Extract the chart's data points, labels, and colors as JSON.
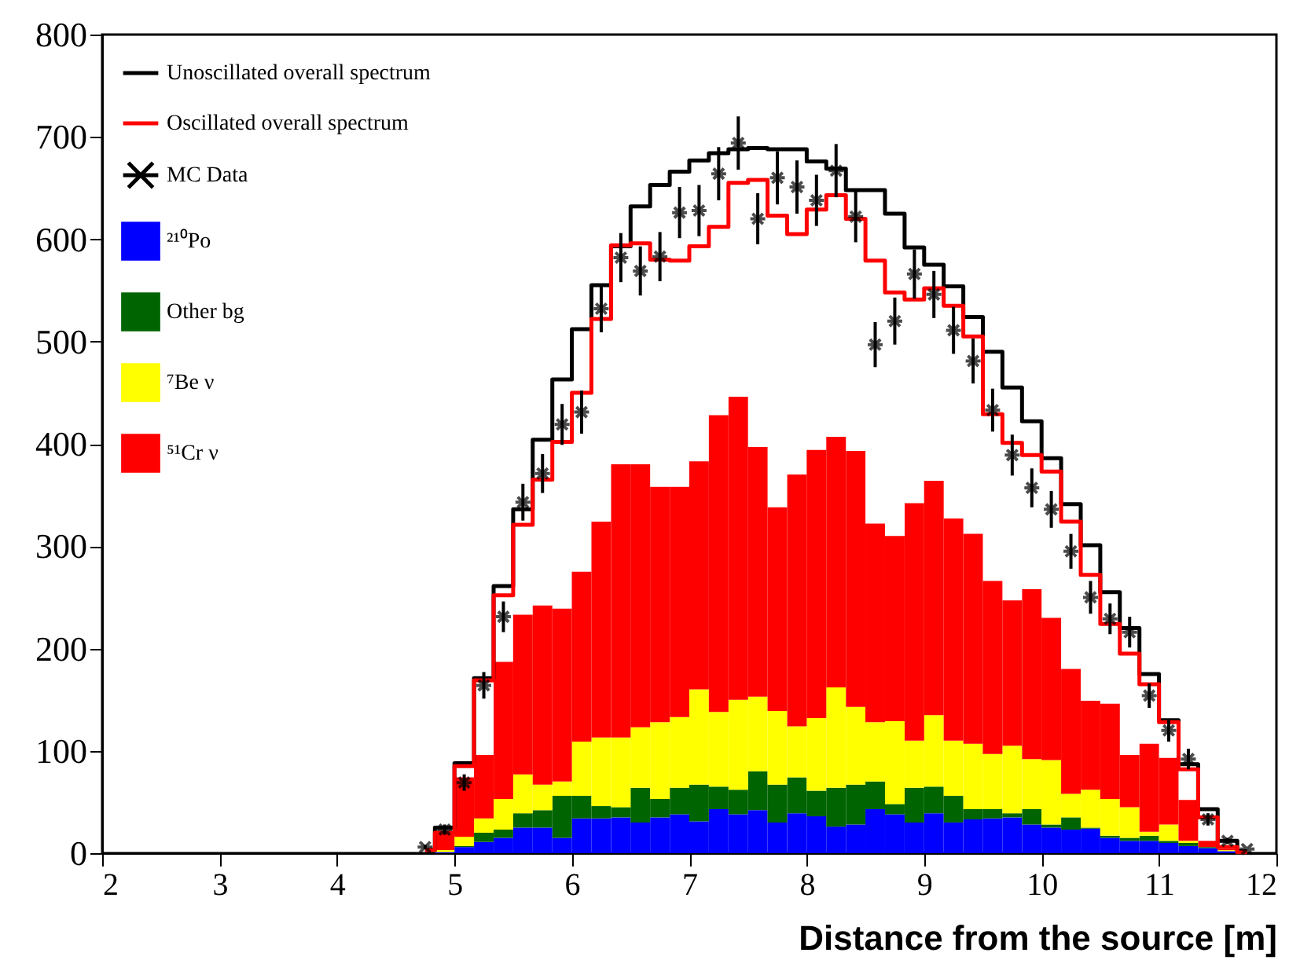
{
  "chart_data": {
    "type": "bar",
    "xlabel": "Distance from the source [m]",
    "xlim": [
      2,
      12
    ],
    "xticks": [
      2,
      3,
      4,
      5,
      6,
      7,
      8,
      9,
      10,
      11,
      12
    ],
    "ylim": [
      0,
      800
    ],
    "yticks": [
      0,
      100,
      200,
      300,
      400,
      500,
      600,
      700,
      800
    ],
    "grid": false,
    "legend": "top left",
    "stacked": true,
    "x": [
      4.75,
      4.917,
      5.083,
      5.25,
      5.417,
      5.583,
      5.75,
      5.917,
      6.083,
      6.25,
      6.417,
      6.583,
      6.75,
      6.917,
      7.083,
      7.25,
      7.417,
      7.583,
      7.75,
      7.917,
      8.083,
      8.25,
      8.417,
      8.583,
      8.75,
      8.917,
      9.083,
      9.25,
      9.417,
      9.583,
      9.75,
      9.917,
      10.083,
      10.25,
      10.417,
      10.583,
      10.75,
      10.917,
      11.083,
      11.25,
      11.417,
      11.583,
      11.75
    ],
    "series": [
      {
        "name": "Unoscillated overall spectrum",
        "type": "step",
        "color": "#000000",
        "values": [
          3,
          25,
          88,
          171,
          261,
          336,
          404,
          463,
          512,
          555,
          593,
          632,
          653,
          666,
          677,
          684,
          688,
          689,
          688,
          688,
          676,
          669,
          648,
          648,
          625,
          592,
          575,
          554,
          524,
          490,
          455,
          422,
          386,
          341,
          301,
          255,
          220,
          175,
          130,
          87,
          43,
          12,
          2
        ]
      },
      {
        "name": "Oscillated overall spectrum",
        "type": "step",
        "color": "#ff0000",
        "values": [
          3,
          20,
          85,
          169,
          252,
          321,
          365,
          402,
          450,
          522,
          594,
          596,
          580,
          579,
          593,
          612,
          655,
          658,
          623,
          605,
          629,
          643,
          620,
          579,
          548,
          541,
          552,
          535,
          505,
          429,
          401,
          389,
          373,
          324,
          272,
          224,
          195,
          165,
          128,
          82,
          35,
          6,
          1
        ]
      },
      {
        "name": "MC Data",
        "type": "scatter",
        "color": "#000000",
        "marker": "cross",
        "values": [
          6,
          23,
          69,
          164,
          231,
          343,
          371,
          419,
          431,
          532,
          582,
          569,
          583,
          626,
          628,
          664,
          694,
          620,
          660,
          651,
          638,
          667,
          622,
          497,
          520,
          566,
          546,
          511,
          481,
          433,
          389,
          357,
          336,
          295,
          250,
          229,
          216,
          154,
          120,
          92,
          33,
          12,
          4
        ],
        "errors": [
          2,
          5,
          8,
          13,
          15,
          18,
          19,
          20,
          21,
          23,
          24,
          24,
          24,
          25,
          25,
          26,
          26,
          25,
          26,
          26,
          25,
          26,
          25,
          22,
          23,
          24,
          23,
          23,
          22,
          21,
          20,
          19,
          18,
          17,
          16,
          15,
          15,
          12,
          11,
          10,
          6,
          3,
          null
        ]
      },
      {
        "name": "²¹⁰Po",
        "color": "#0000ff",
        "values": [
          0,
          1,
          6,
          11,
          15,
          25,
          25,
          15,
          34,
          34,
          35,
          30,
          35,
          38,
          31,
          43,
          38,
          42,
          30,
          39,
          36,
          26,
          28,
          43,
          38,
          30,
          39,
          30,
          33,
          34,
          35,
          28,
          25,
          23,
          24,
          15,
          12,
          12,
          10,
          7,
          5,
          2,
          0
        ]
      },
      {
        "name": "Other bg",
        "color": "#006400",
        "values": [
          0,
          0,
          1,
          9,
          8,
          14,
          17,
          41,
          22,
          12,
          10,
          34,
          18,
          26,
          36,
          22,
          24,
          38,
          37,
          35,
          25,
          38,
          39,
          27,
          10,
          34,
          26,
          26,
          10,
          9,
          4,
          15,
          3,
          12,
          1,
          2,
          3,
          5,
          2,
          3,
          1,
          0,
          0
        ]
      },
      {
        "name": "⁷Be ν",
        "color": "#ffff00",
        "values": [
          0,
          2,
          9,
          14,
          30,
          38,
          25,
          14,
          53,
          67,
          68,
          59,
          75,
          69,
          93,
          73,
          88,
          73,
          72,
          50,
          71,
          98,
          76,
          58,
          81,
          46,
          70,
          54,
          64,
          54,
          66,
          49,
          63,
          23,
          37,
          36,
          30,
          4,
          16,
          2,
          0,
          1,
          0
        ]
      },
      {
        "name": "⁵¹Cr ν",
        "color": "#ff0000",
        "values": [
          0,
          16,
          58,
          62,
          134,
          156,
          175,
          169,
          166,
          211,
          267,
          257,
          230,
          225,
          223,
          290,
          296,
          244,
          199,
          246,
          262,
          245,
          250,
          194,
          181,
          232,
          229,
          217,
          205,
          169,
          142,
          166,
          139,
          122,
          87,
          93,
          51,
          86,
          65,
          40,
          6,
          1,
          0
        ]
      }
    ]
  }
}
